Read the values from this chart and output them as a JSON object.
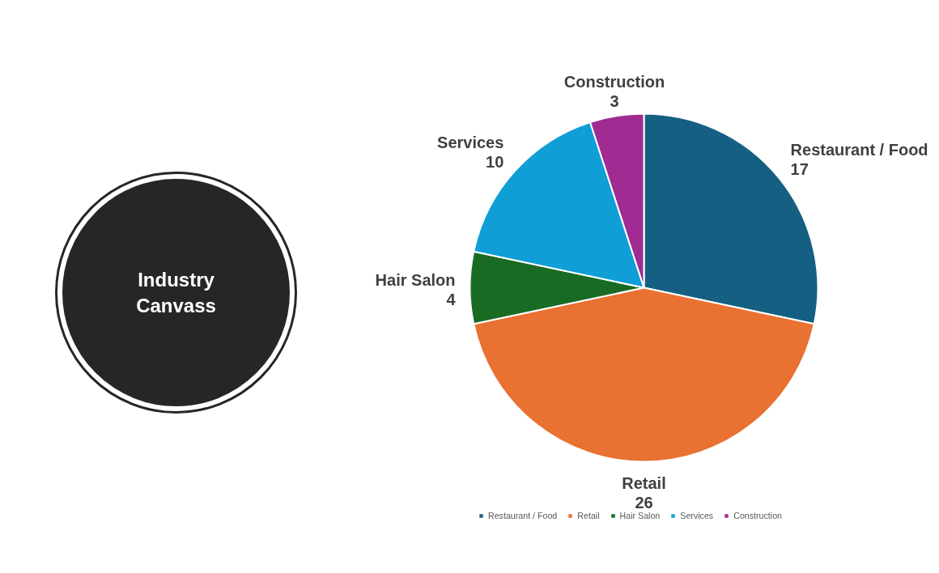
{
  "chart_data": {
    "type": "pie",
    "title": "Industry Canvass",
    "categories": [
      "Restaurant / Food",
      "Retail",
      "Hair Salon",
      "Services",
      "Construction"
    ],
    "values": [
      17,
      26,
      4,
      10,
      3
    ],
    "colors": [
      "#156082",
      "#e97132",
      "#196b24",
      "#0f9ed5",
      "#a02b93"
    ],
    "data_labels": true,
    "legend": "bottom"
  }
}
